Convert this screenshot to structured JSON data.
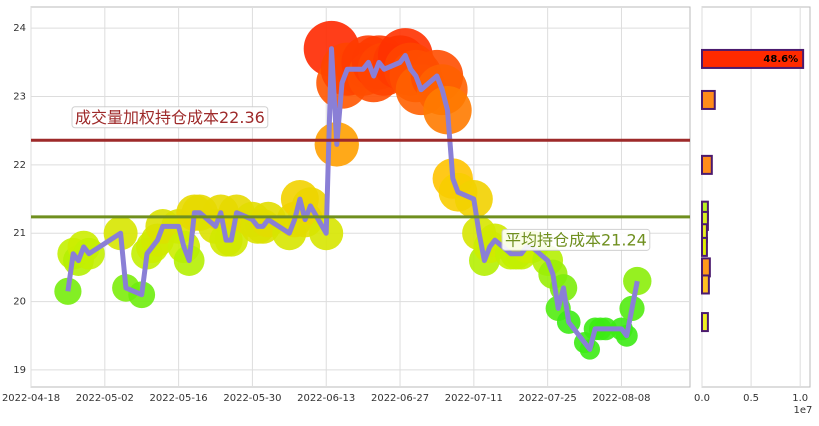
{
  "chart_data": [
    {
      "type": "line",
      "x": [
        "2022-04-25",
        "2022-04-26",
        "2022-04-27",
        "2022-04-28",
        "2022-04-29",
        "2022-05-05",
        "2022-05-06",
        "2022-05-09",
        "2022-05-10",
        "2022-05-11",
        "2022-05-12",
        "2022-05-13",
        "2022-05-16",
        "2022-05-17",
        "2022-05-18",
        "2022-05-19",
        "2022-05-20",
        "2022-05-23",
        "2022-05-24",
        "2022-05-25",
        "2022-05-26",
        "2022-05-27",
        "2022-05-30",
        "2022-05-31",
        "2022-06-01",
        "2022-06-02",
        "2022-06-06",
        "2022-06-07",
        "2022-06-08",
        "2022-06-09",
        "2022-06-10",
        "2022-06-13",
        "2022-06-14",
        "2022-06-15",
        "2022-06-16",
        "2022-06-17",
        "2022-06-20",
        "2022-06-21",
        "2022-06-22",
        "2022-06-23",
        "2022-06-24",
        "2022-06-27",
        "2022-06-28",
        "2022-06-29",
        "2022-06-30",
        "2022-07-01",
        "2022-07-04",
        "2022-07-05",
        "2022-07-06",
        "2022-07-07",
        "2022-07-08",
        "2022-07-11",
        "2022-07-12",
        "2022-07-13",
        "2022-07-14",
        "2022-07-15",
        "2022-07-18",
        "2022-07-19",
        "2022-07-20",
        "2022-07-21",
        "2022-07-22",
        "2022-07-25",
        "2022-07-26",
        "2022-07-27",
        "2022-07-28",
        "2022-07-29",
        "2022-08-01",
        "2022-08-02",
        "2022-08-03",
        "2022-08-04",
        "2022-08-05",
        "2022-08-08",
        "2022-08-09",
        "2022-08-10",
        "2022-08-11"
      ],
      "series": [
        {
          "color": "#8a7fd6",
          "values": [
            20.15,
            20.7,
            20.6,
            20.8,
            20.7,
            21.0,
            20.2,
            20.1,
            20.7,
            20.8,
            20.9,
            21.1,
            21.1,
            20.8,
            20.6,
            21.3,
            21.3,
            21.1,
            21.3,
            20.9,
            20.9,
            21.3,
            21.2,
            21.1,
            21.1,
            21.2,
            21.0,
            21.2,
            21.5,
            21.2,
            21.4,
            21.0,
            23.7,
            22.3,
            23.2,
            23.4,
            23.4,
            23.5,
            23.3,
            23.5,
            23.4,
            23.5,
            23.6,
            23.4,
            23.3,
            23.1,
            23.3,
            23.1,
            22.8,
            21.8,
            21.6,
            21.5,
            21.0,
            20.6,
            20.8,
            20.9,
            20.7,
            20.7,
            20.7,
            20.8,
            20.8,
            20.6,
            20.4,
            19.9,
            20.2,
            19.7,
            19.4,
            19.3,
            19.6,
            19.6,
            19.6,
            19.6,
            19.5,
            19.9,
            20.3
          ]
        }
      ],
      "xlim": [
        "2022-04-18",
        "2022-08-21"
      ],
      "xticks": [
        "2022-04-18",
        "2022-05-02",
        "2022-05-16",
        "2022-05-30",
        "2022-06-13",
        "2022-06-27",
        "2022-07-11",
        "2022-07-25",
        "2022-08-08"
      ],
      "ylim": [
        18.75,
        24.31
      ],
      "yticks": [
        19,
        20,
        21,
        22,
        23,
        24
      ],
      "grid": true,
      "hlines": [
        {
          "value": 22.36,
          "color": "#9e2a2a",
          "label": "成交量加权持仓成本22.36"
        },
        {
          "value": 21.24,
          "color": "#6f8f1f",
          "label": "平均持仓成本21.24"
        }
      ]
    },
    {
      "type": "barh",
      "y": [
        23.55,
        22.95,
        22.0,
        21.33,
        21.18,
        21.0,
        20.8,
        20.5,
        20.25,
        19.7
      ],
      "values": [
        1.03,
        0.13,
        0.1,
        0.06,
        0.06,
        0.05,
        0.05,
        0.08,
        0.07,
        0.06
      ],
      "colors": [
        "#ff2a00",
        "#ff8c1a",
        "#ff8c1a",
        "#b8f020",
        "#d8f020",
        "#e8f020",
        "#e0f000",
        "#ff9a1a",
        "#ffc020",
        "#f0f020"
      ],
      "value_labels": [
        "48.6%",
        null,
        null,
        null,
        null,
        null,
        null,
        null,
        null,
        null
      ],
      "xlim": [
        0,
        1.1
      ],
      "xticks": [
        {
          "value": 0,
          "label": "0.0"
        },
        {
          "value": 0.5,
          "label": "0.5"
        },
        {
          "value": 1,
          "label": "1.0"
        }
      ],
      "x_offset_label": "1e7",
      "ylim": [
        18.75,
        24.31
      ],
      "grid": true
    }
  ]
}
